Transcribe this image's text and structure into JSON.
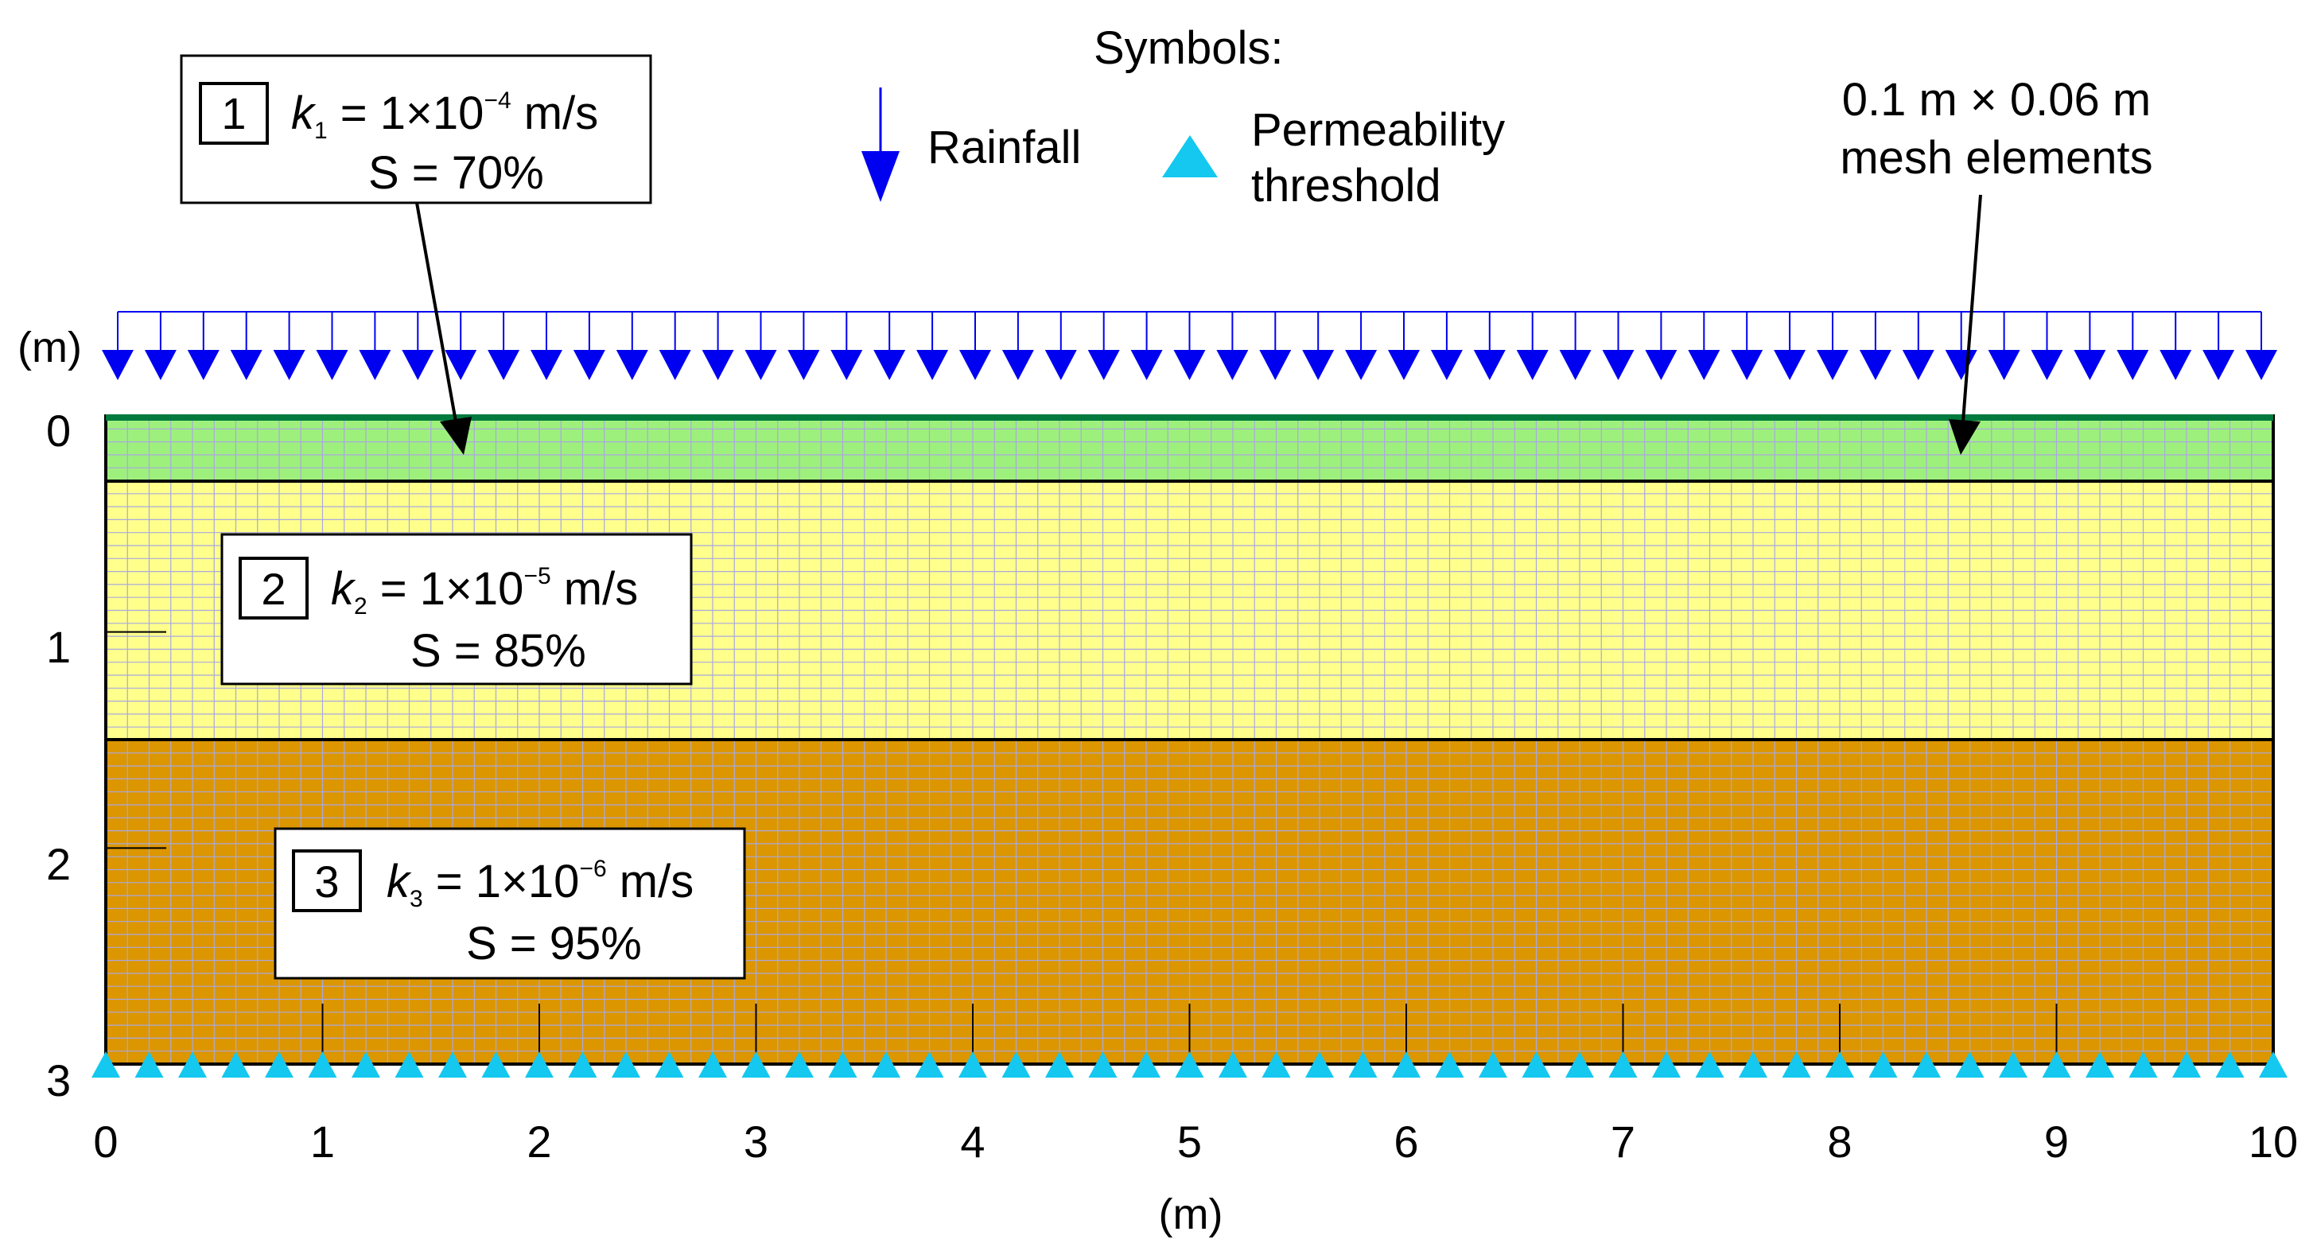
{
  "legend": {
    "title": "Symbols:",
    "rainfall_label": "Rainfall",
    "threshold_line1": "Permeability",
    "threshold_line2": "threshold"
  },
  "mesh_note": {
    "line1": "0.1 m × 0.06 m",
    "line2": "mesh elements"
  },
  "axes": {
    "y_unit": "(m)",
    "x_unit": "(m)",
    "y_ticks": [
      "0",
      "1",
      "2",
      "3"
    ],
    "x_ticks": [
      "0",
      "1",
      "2",
      "3",
      "4",
      "5",
      "6",
      "7",
      "8",
      "9",
      "10"
    ]
  },
  "domain_model": {
    "width_m": 10,
    "depth_m": 3,
    "mesh_dx_m": 0.1,
    "mesh_dy_m": 0.06,
    "rain_arrow_count": 51,
    "threshold_marker_count": 51
  },
  "layers": [
    {
      "id": "1",
      "k_symbol": "k",
      "k_sub": "1",
      "k_text": " = 1×10",
      "k_exp": "−4",
      "k_unit": " m/s",
      "s_text": "S = 70%",
      "top_m": 0,
      "bottom_m": 0.3,
      "color": "#9ef07c"
    },
    {
      "id": "2",
      "k_symbol": "k",
      "k_sub": "2",
      "k_text": " = 1×10",
      "k_exp": "−5",
      "k_unit": " m/s",
      "s_text": "S = 85%",
      "top_m": 0.3,
      "bottom_m": 1.5,
      "color": "#ffff8c"
    },
    {
      "id": "3",
      "k_symbol": "k",
      "k_sub": "3",
      "k_text": " = 1×10",
      "k_exp": "−6",
      "k_unit": " m/s",
      "s_text": "S = 95%",
      "top_m": 1.5,
      "bottom_m": 3,
      "color": "#dc9600"
    }
  ],
  "colors": {
    "rain": "#0000f0",
    "threshold": "#14c8f0",
    "mesh": "#a8a8e0",
    "surface": "#007a3d"
  }
}
